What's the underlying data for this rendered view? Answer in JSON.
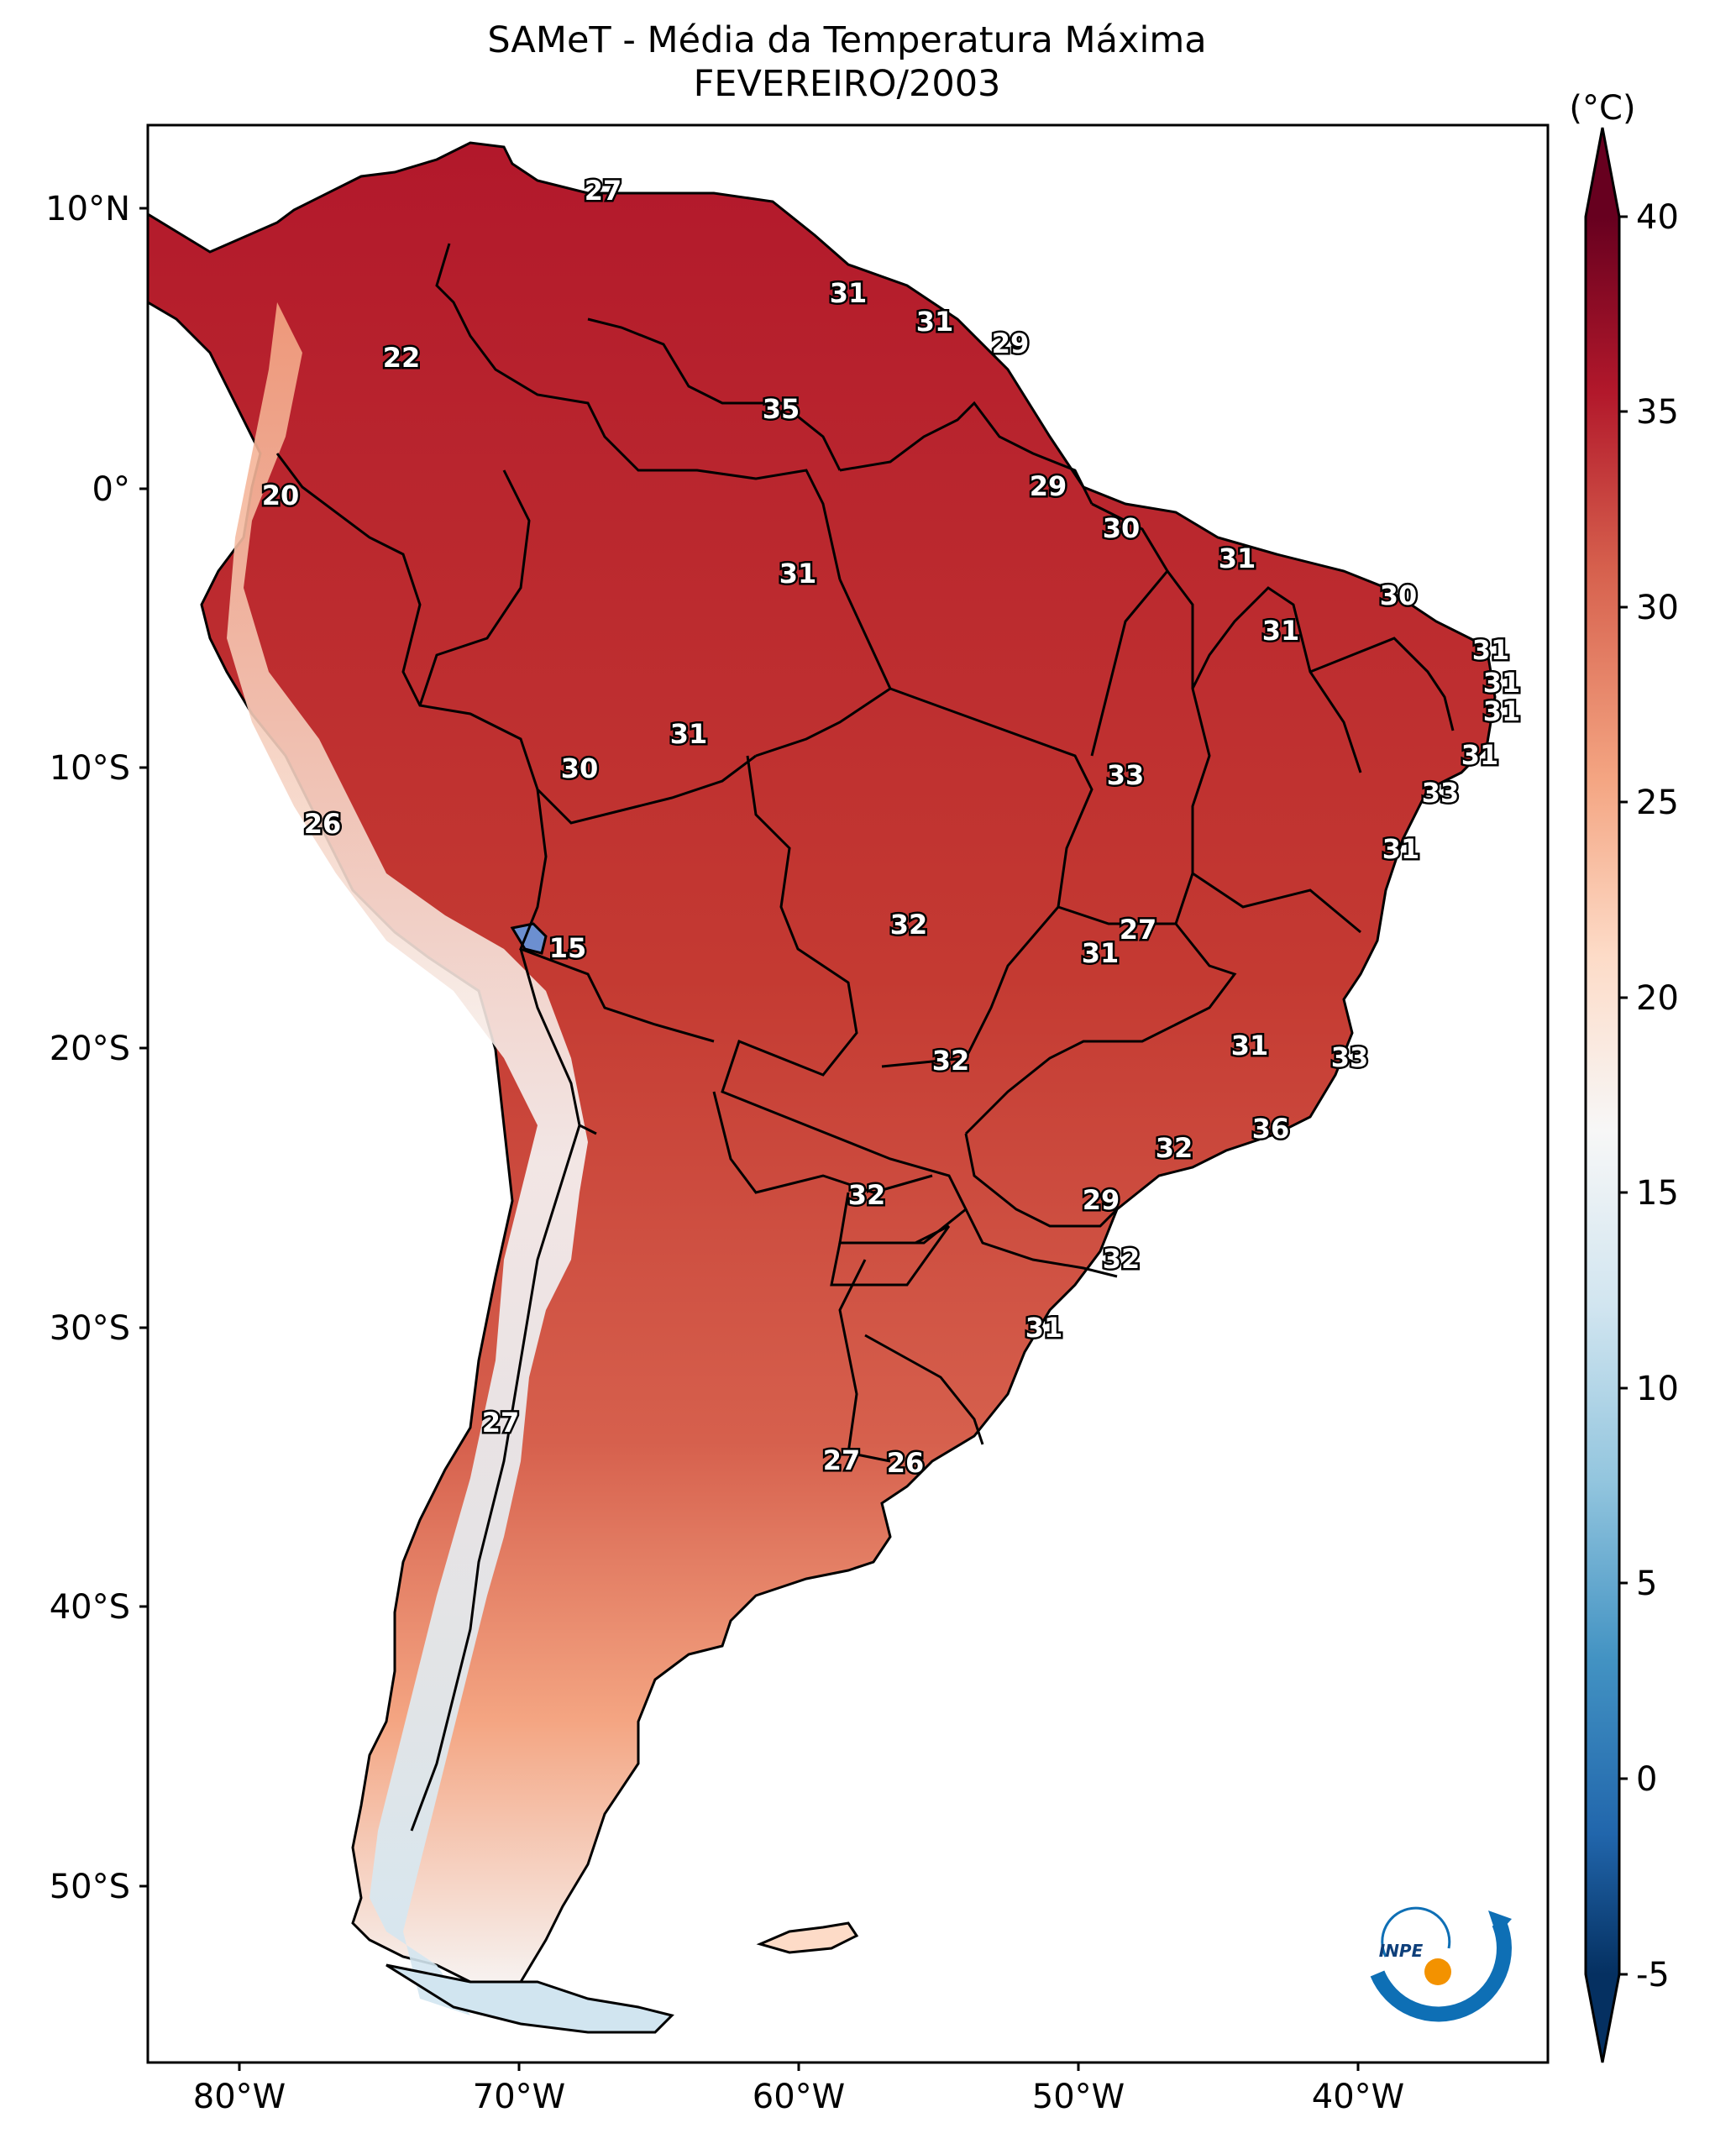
{
  "title": {
    "line1": "SAMeT - Média da Temperatura Máxima",
    "line2": "FEVEREIRO/2003"
  },
  "colorbar": {
    "unit": "(°C)",
    "ticks": [
      "40",
      "35",
      "30",
      "25",
      "20",
      "15",
      "10",
      "5",
      "0",
      "-5"
    ],
    "colors": [
      "#67001f",
      "#b2182b",
      "#d6604d",
      "#f4a582",
      "#fddbc7",
      "#f7f7f7",
      "#d1e5f0",
      "#92c5de",
      "#4393c3",
      "#2166ac",
      "#053061"
    ]
  },
  "axes": {
    "lon_ticks": [
      "80°W",
      "70°W",
      "60°W",
      "50°W",
      "40°W"
    ],
    "lat_ticks": [
      "10°N",
      "0°",
      "10°S",
      "20°S",
      "30°S",
      "40°S",
      "50°S"
    ]
  },
  "values": [
    "27",
    "31",
    "31",
    "29",
    "22",
    "35",
    "20",
    "29",
    "30",
    "31",
    "31",
    "30",
    "31",
    "31",
    "31",
    "31",
    "31",
    "30",
    "31",
    "33",
    "33",
    "26",
    "31",
    "15",
    "32",
    "27",
    "31",
    "31",
    "32",
    "33",
    "36",
    "32",
    "32",
    "29",
    "32",
    "31",
    "27",
    "27",
    "26"
  ],
  "logo": {
    "text": "INPE"
  }
}
